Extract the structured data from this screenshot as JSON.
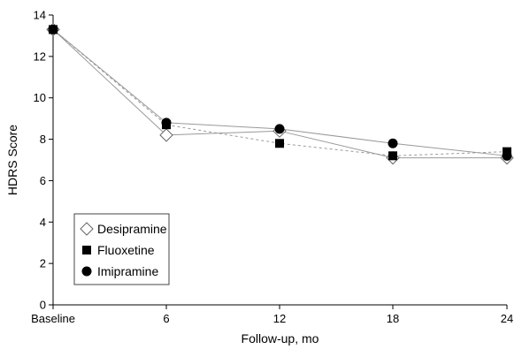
{
  "chart_data": {
    "type": "line",
    "title": "",
    "xlabel": "Follow-up, mo",
    "ylabel": "HDRS Score",
    "categories": [
      "Baseline",
      "6",
      "12",
      "18",
      "24"
    ],
    "ylim": [
      0,
      14
    ],
    "yticks": [
      "0",
      "2",
      "4",
      "6",
      "8",
      "10",
      "12",
      "14"
    ],
    "grid": false,
    "legend_position": "bottom-left",
    "series": [
      {
        "name": "Desipramine",
        "marker": "diamond-open",
        "line": "solid",
        "color": "#999999",
        "values": [
          13.3,
          8.2,
          8.4,
          7.1,
          7.1
        ]
      },
      {
        "name": "Fluoxetine",
        "marker": "square-filled",
        "line": "dashed",
        "color": "#999999",
        "values": [
          13.3,
          8.7,
          7.8,
          7.2,
          7.4
        ]
      },
      {
        "name": "Imipramine",
        "marker": "circle-filled",
        "line": "solid",
        "color": "#999999",
        "values": [
          13.3,
          8.8,
          8.5,
          7.8,
          7.2
        ]
      }
    ]
  }
}
